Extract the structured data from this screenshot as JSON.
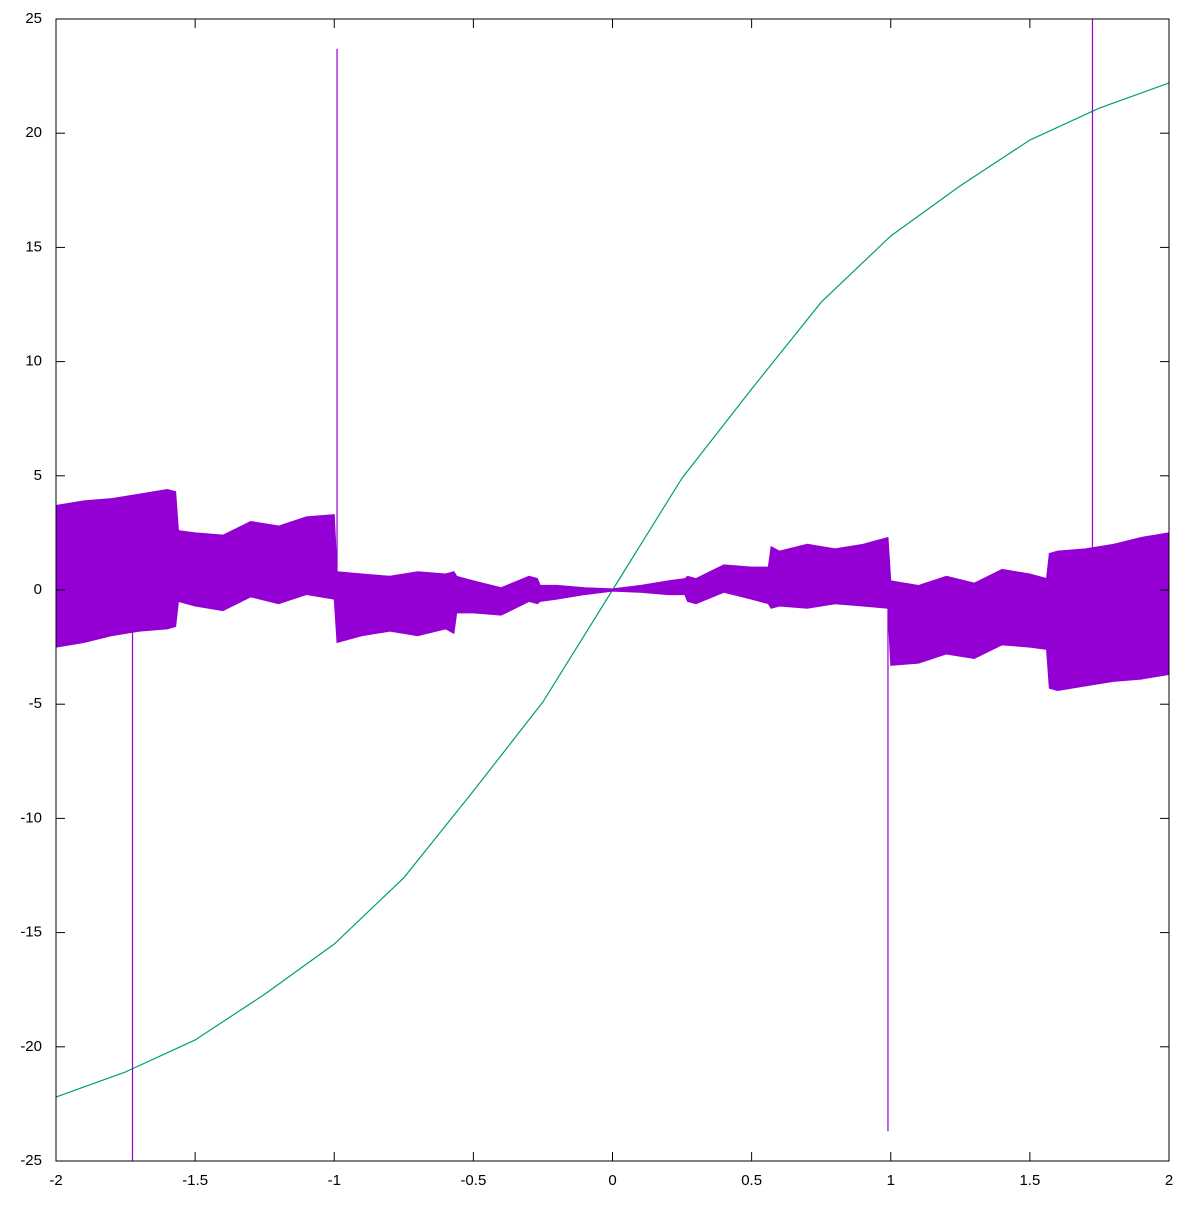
{
  "chart_data": {
    "type": "line",
    "xlim": [
      -2,
      2
    ],
    "ylim": [
      -25,
      25
    ],
    "xticks": [
      -2,
      -1.5,
      -1,
      -0.5,
      0,
      0.5,
      1,
      1.5,
      2
    ],
    "yticks": [
      -25,
      -20,
      -15,
      -10,
      -5,
      0,
      5,
      10,
      15,
      20,
      25
    ],
    "series": [
      {
        "color": "#009e73",
        "x": [
          -2,
          -1.75,
          -1.5,
          -1.25,
          -1,
          -0.75,
          -0.5,
          -0.25,
          0,
          0.25,
          0.5,
          0.75,
          1,
          1.25,
          1.5,
          1.75,
          2
        ],
        "values": [
          -22.2,
          -21.1,
          -19.7,
          -17.7,
          -15.5,
          -12.6,
          -8.8,
          -4.9,
          0,
          4.9,
          8.8,
          12.6,
          15.5,
          17.7,
          19.7,
          21.1,
          22.2
        ]
      },
      {
        "color": "#9400d3",
        "x": [
          -2,
          -1.9,
          -1.8,
          -1.7,
          -1.6,
          -1.57,
          -1.56,
          -1.5,
          -1.4,
          -1.3,
          -1.2,
          -1.1,
          -1.0,
          -0.99,
          -0.9,
          -0.8,
          -0.7,
          -0.6,
          -0.57,
          -0.56,
          -0.5,
          -0.4,
          -0.3,
          -0.27,
          -0.26,
          -0.2,
          -0.1,
          0,
          0.1,
          0.2,
          0.26,
          0.27,
          0.3,
          0.4,
          0.5,
          0.56,
          0.57,
          0.6,
          0.7,
          0.8,
          0.9,
          0.99,
          1.0,
          1.1,
          1.2,
          1.3,
          1.4,
          1.5,
          1.56,
          1.57,
          1.6,
          1.7,
          1.8,
          1.9,
          2
        ],
        "upper": [
          3.7,
          3.9,
          4.0,
          4.2,
          4.4,
          4.3,
          2.6,
          2.5,
          2.4,
          3.0,
          2.8,
          3.2,
          3.3,
          0.8,
          0.7,
          0.6,
          0.8,
          0.7,
          0.8,
          0.6,
          0.4,
          0.1,
          0.6,
          0.5,
          0.2,
          0.2,
          0.1,
          0.05,
          0.2,
          0.4,
          0.5,
          0.6,
          0.5,
          1.1,
          1.0,
          1.0,
          1.9,
          1.7,
          2.0,
          1.8,
          2.0,
          2.3,
          0.4,
          0.2,
          0.6,
          0.3,
          0.9,
          0.7,
          0.5,
          1.6,
          1.7,
          1.8,
          2.0,
          2.3,
          2.5
        ],
        "lower": [
          -2.5,
          -2.3,
          -2.0,
          -1.8,
          -1.7,
          -1.6,
          -0.5,
          -0.7,
          -0.9,
          -0.3,
          -0.6,
          -0.2,
          -0.4,
          -2.3,
          -2.0,
          -1.8,
          -2.0,
          -1.7,
          -1.9,
          -1.0,
          -1.0,
          -1.1,
          -0.5,
          -0.6,
          -0.5,
          -0.4,
          -0.2,
          -0.05,
          -0.1,
          -0.2,
          -0.2,
          -0.5,
          -0.6,
          -0.1,
          -0.4,
          -0.6,
          -0.8,
          -0.7,
          -0.8,
          -0.6,
          -0.7,
          -0.8,
          -3.3,
          -3.2,
          -2.8,
          -3.0,
          -2.4,
          -2.5,
          -2.6,
          -4.3,
          -4.4,
          -4.2,
          -4.0,
          -3.9,
          -3.7
        ],
        "spikes": [
          {
            "x": -1.725,
            "value": -25
          },
          {
            "x": -0.99,
            "value": 23.7
          },
          {
            "x": 0.99,
            "value": -23.7
          },
          {
            "x": 1.725,
            "value": 25
          }
        ]
      }
    ]
  }
}
